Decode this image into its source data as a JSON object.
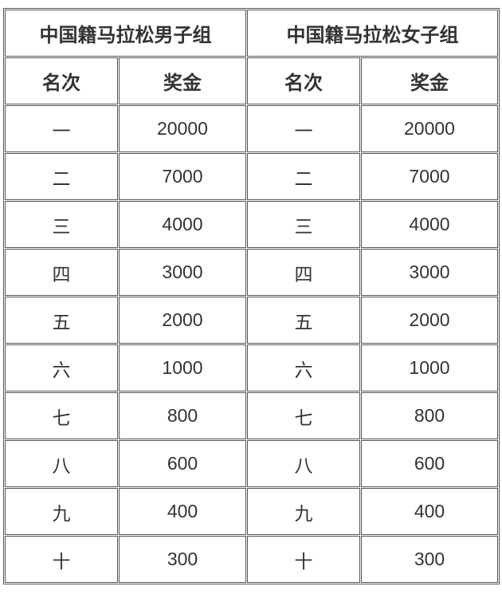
{
  "groups": [
    {
      "title": "中国籍马拉松男子组",
      "col_rank": "名次",
      "col_prize": "奖金"
    },
    {
      "title": "中国籍马拉松女子组",
      "col_rank": "名次",
      "col_prize": "奖金"
    }
  ],
  "rows": [
    {
      "rank": "一",
      "prize": "20000"
    },
    {
      "rank": "二",
      "prize": "7000"
    },
    {
      "rank": "三",
      "prize": "4000"
    },
    {
      "rank": "四",
      "prize": "3000"
    },
    {
      "rank": "五",
      "prize": "2000"
    },
    {
      "rank": "六",
      "prize": "1000"
    },
    {
      "rank": "七",
      "prize": "800"
    },
    {
      "rank": "八",
      "prize": "600"
    },
    {
      "rank": "九",
      "prize": "400"
    },
    {
      "rank": "十",
      "prize": "300"
    }
  ]
}
